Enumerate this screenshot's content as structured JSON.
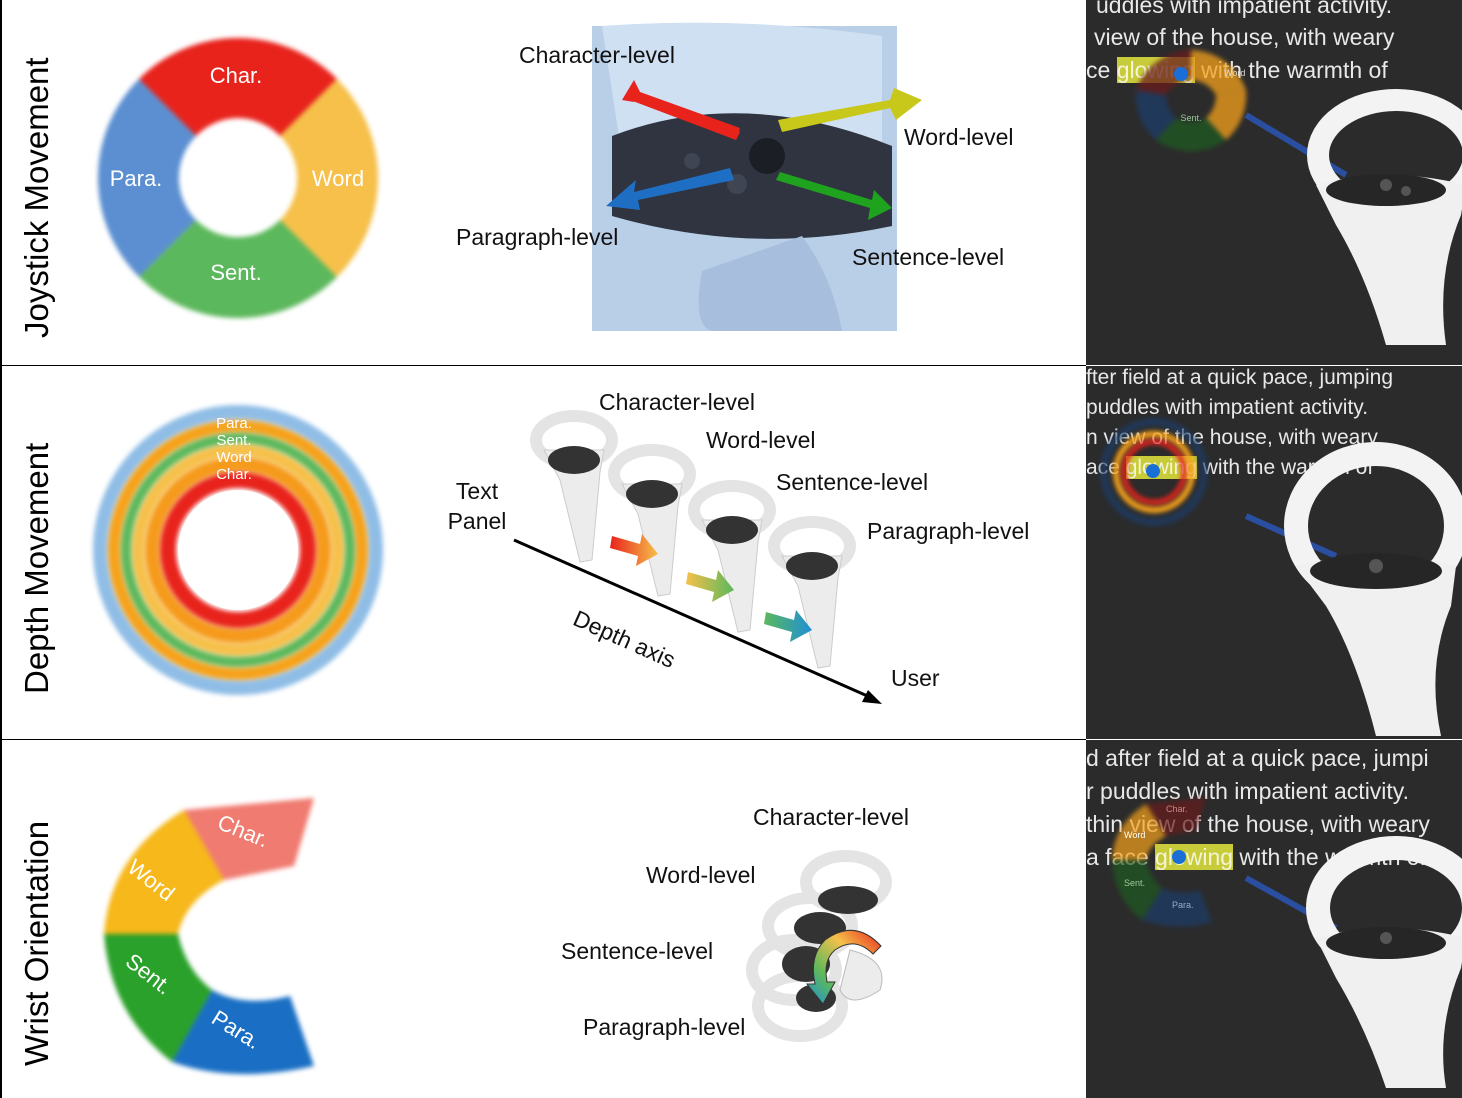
{
  "rows": [
    {
      "title": "Joystick Movement",
      "menu_labels": [
        "Char.",
        "Word",
        "Sent.",
        "Para."
      ],
      "callouts": [
        "Character-level",
        "Word-level",
        "Paragraph-level",
        "Sentence-level"
      ],
      "vr_lines": [
        "uddles with impatient activity.",
        "view of the house, with weary",
        "ce glowing with the warmth of"
      ],
      "vr_highlight": "glowing",
      "vr_menu_labels": [
        "Word",
        "Sent."
      ]
    },
    {
      "title": "Depth Movement",
      "menu_labels": [
        "Para.",
        "Sent.",
        "Word",
        "Char."
      ],
      "callouts": [
        "Character-level",
        "Word-level",
        "Sentence-level",
        "Paragraph-level"
      ],
      "axis_labels": {
        "start": "Text Panel",
        "axis": "Depth axis",
        "end": "User"
      },
      "vr_lines": [
        "fter field at a quick pace, jumping",
        "puddles with impatient activity.",
        "n view of the house, with weary",
        "ace glowing with the warmth of"
      ],
      "vr_highlight": "glowing"
    },
    {
      "title": "Wrist Orientation",
      "menu_labels": [
        "Char.",
        "Word",
        "Sent.",
        "Para."
      ],
      "callouts": [
        "Character-level",
        "Word-level",
        "Sentence-level",
        "Paragraph-level"
      ],
      "vr_lines": [
        "d after field at a quick pace, jumpi",
        "r puddles with impatient activity.",
        "thin view of the house, with weary",
        "a face glowing with the warmth of"
      ],
      "vr_highlight": "glowing",
      "vr_menu_labels": [
        "Char.",
        "Word",
        "Sent.",
        "Para."
      ]
    }
  ],
  "colors": {
    "char": "#e8231c",
    "word": "#f6c04a",
    "sent": "#5cb85c",
    "para": "#5b8fd1",
    "vr_bg": "#2b2b2b",
    "highlight": "#c9cc3a"
  }
}
